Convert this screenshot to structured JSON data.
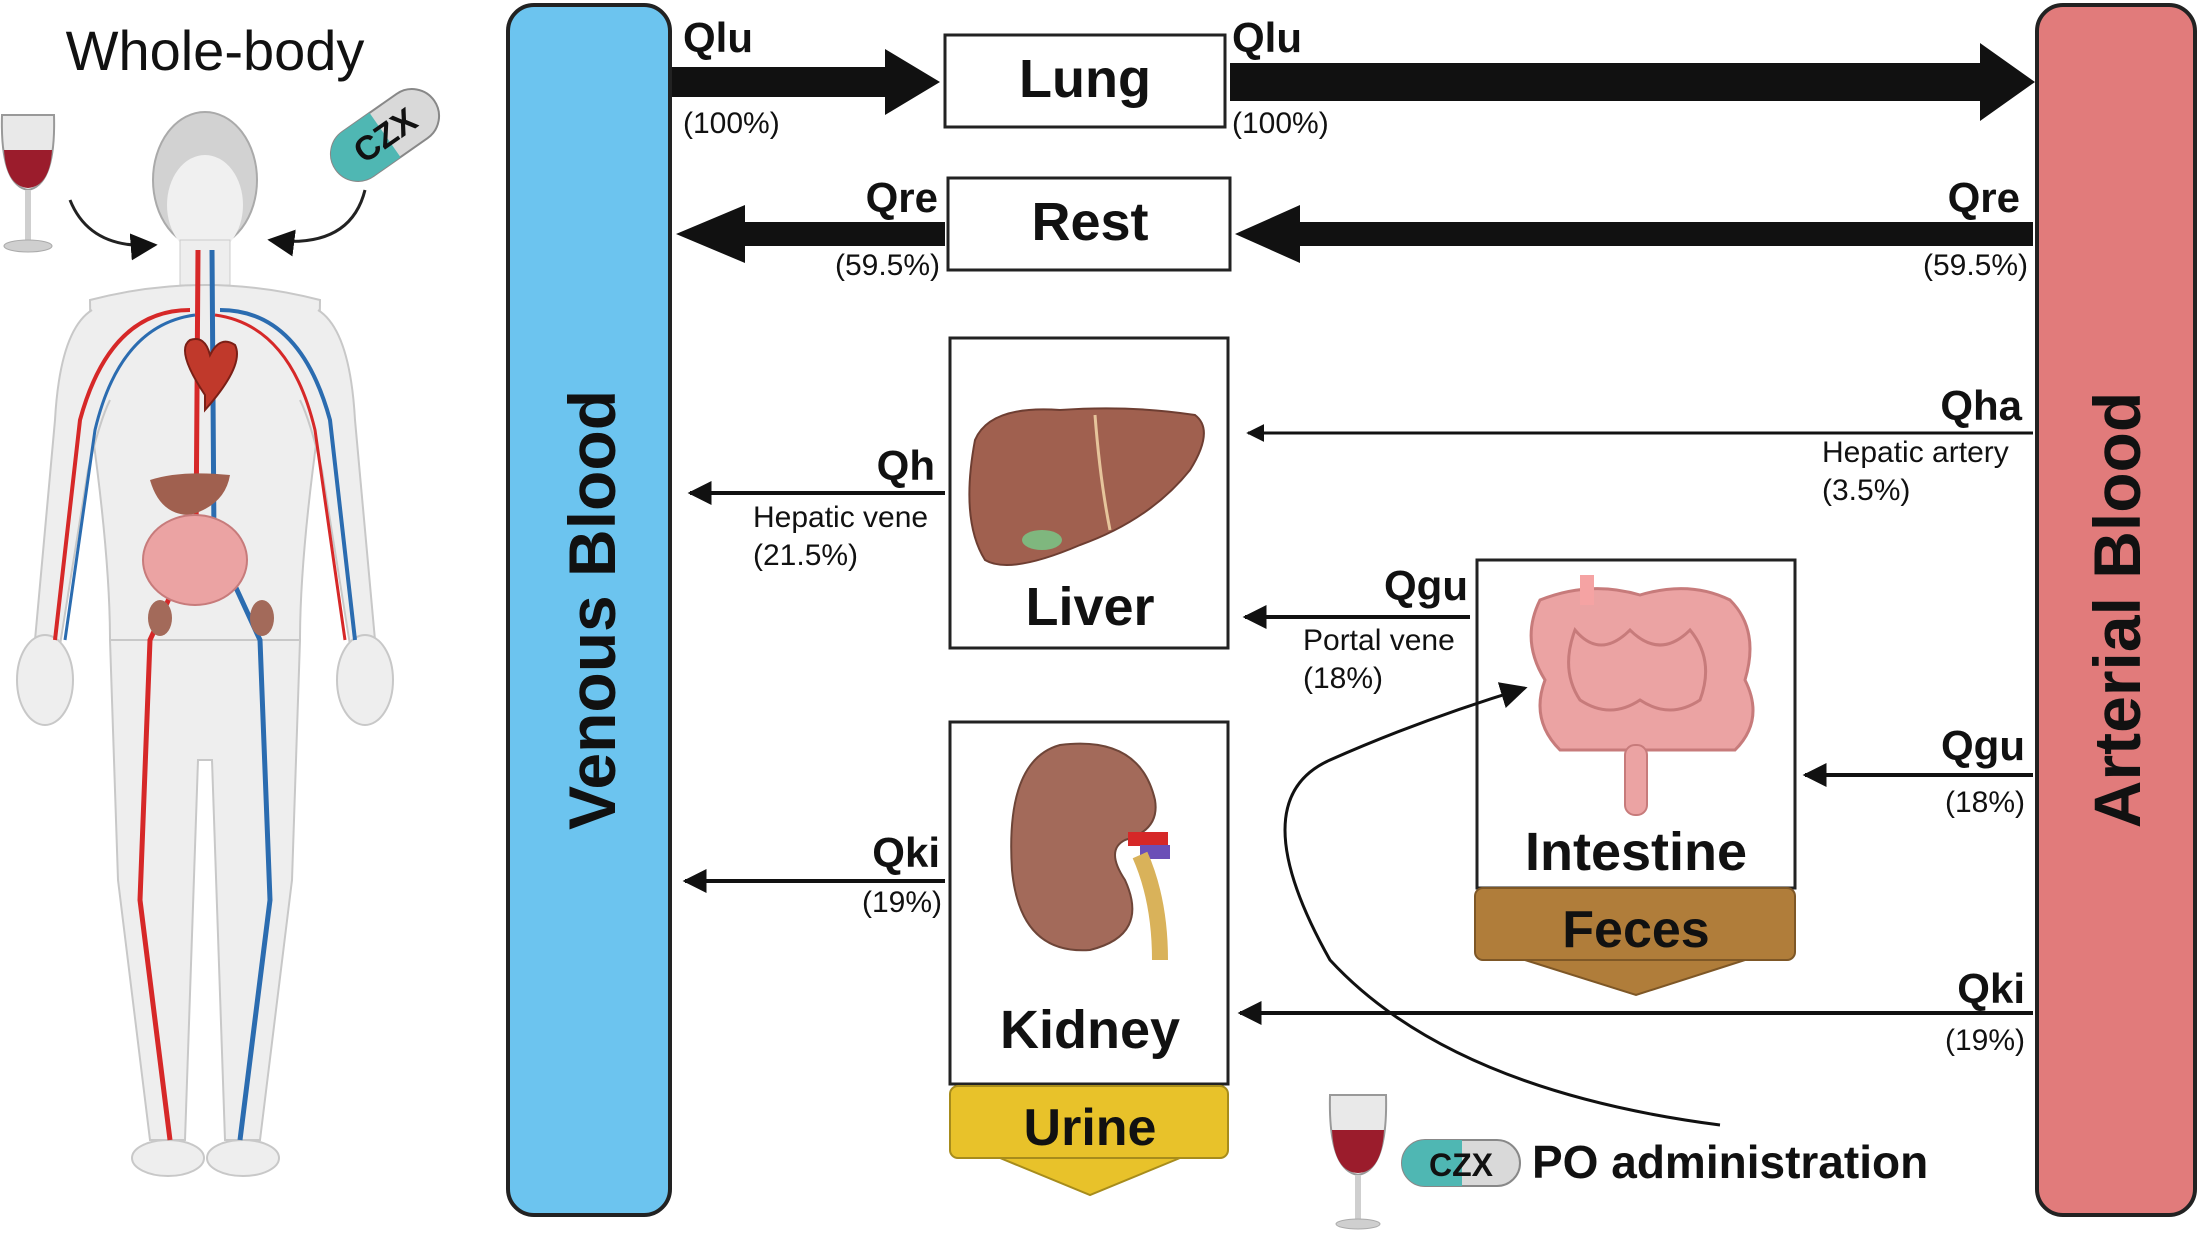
{
  "whole_body": {
    "title": "Whole-body",
    "pill_label": "CZX"
  },
  "venous": {
    "label": "Venous Blood",
    "color": "#6cc4ef"
  },
  "arterial": {
    "label": "Arterial Blood",
    "color": "#e17b7b"
  },
  "organs": {
    "lung": "Lung",
    "rest": "Rest",
    "liver": "Liver",
    "intestine": "Intestine",
    "kidney": "Kidney",
    "feces": "Feces",
    "urine": "Urine"
  },
  "flows": {
    "qlu_in": {
      "label": "Qlu",
      "pct": "(100%)"
    },
    "qlu_out": {
      "label": "Qlu",
      "pct": "(100%)"
    },
    "qre_ven": {
      "label": "Qre",
      "pct": "(59.5%)"
    },
    "qre_art": {
      "label": "Qre",
      "pct": "(59.5%)"
    },
    "qh": {
      "label": "Qh",
      "desc": "Hepatic vene",
      "pct": "(21.5%)"
    },
    "qha": {
      "label": "Qha",
      "desc": "Hepatic artery",
      "pct": "(3.5%)"
    },
    "qgu_portal": {
      "label": "Qgu",
      "desc": "Portal vene",
      "pct": "(18%)"
    },
    "qgu_art": {
      "label": "Qgu",
      "pct": "(18%)"
    },
    "qki_ven": {
      "label": "Qki",
      "pct": "(19%)"
    },
    "qki_art": {
      "label": "Qki",
      "pct": "(19%)"
    }
  },
  "po": {
    "pill_label": "CZX",
    "label": "PO administration"
  },
  "colors": {
    "feces": "#b07d3a",
    "urine": "#e8c22a",
    "organ_liver": "#a0604f",
    "organ_kidney": "#a36a5a",
    "organ_intestine": "#eba3a3",
    "pill_teal": "#4fb7b3",
    "wine": "#9b1c2c"
  }
}
